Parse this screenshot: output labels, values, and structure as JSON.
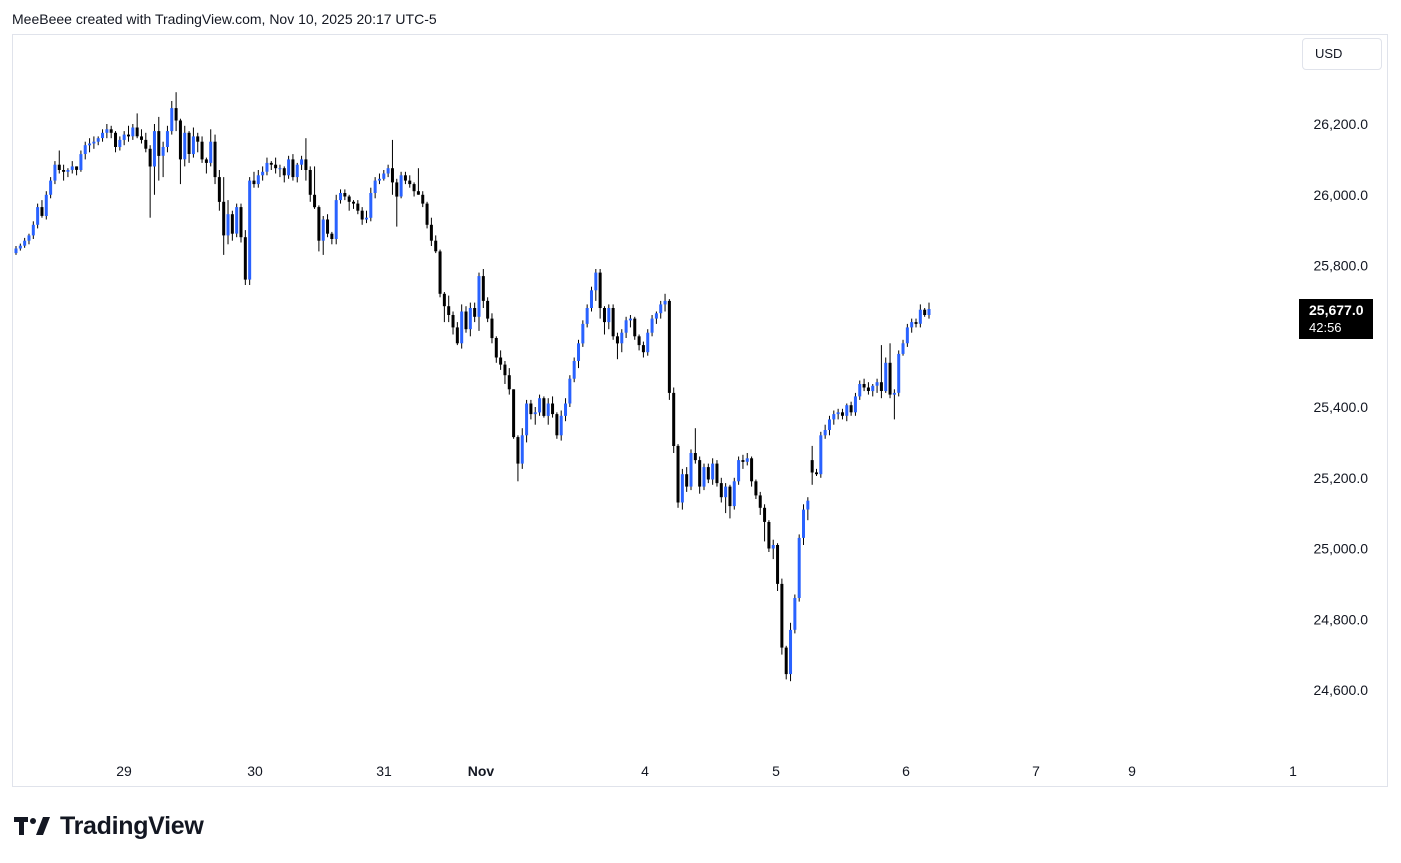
{
  "header": {
    "text": "MeeBeee created with TradingView.com, Nov 10, 2025 20:17 UTC-5"
  },
  "currency": "USD",
  "last_price": {
    "value": "25,677.0",
    "countdown": "42:56"
  },
  "branding": {
    "logo_text": "TradingView"
  },
  "colors": {
    "up": "#2962ff",
    "down": "#000000",
    "wick": "#000000"
  },
  "chart_data": {
    "type": "candlestick",
    "y_ticks": [
      "26,200.0",
      "26,000.0",
      "25,800.0",
      "25,400.0",
      "25,200.0",
      "25,000.0",
      "24,800.0",
      "24,600.0"
    ],
    "y_tick_values": [
      26200,
      26000,
      25800,
      25400,
      25200,
      25000,
      24800,
      24600
    ],
    "x_ticks": [
      "29",
      "30",
      "31",
      "Nov",
      "4",
      "5",
      "6",
      "7",
      "9",
      "1"
    ],
    "ylim": [
      24400,
      26450
    ],
    "grid": false,
    "candles_ohlc": [
      [
        25835,
        25855,
        25830,
        25848
      ],
      [
        25848,
        25862,
        25842,
        25856
      ],
      [
        25856,
        25878,
        25850,
        25870
      ],
      [
        25870,
        25890,
        25860,
        25885
      ],
      [
        25885,
        25925,
        25875,
        25915
      ],
      [
        25915,
        25975,
        25905,
        25965
      ],
      [
        25965,
        25985,
        25935,
        25940
      ],
      [
        25940,
        26010,
        25930,
        26000
      ],
      [
        26000,
        26050,
        25990,
        26040
      ],
      [
        26040,
        26095,
        26030,
        26085
      ],
      [
        26085,
        26125,
        26060,
        26070
      ],
      [
        26070,
        26085,
        26040,
        26065
      ],
      [
        26065,
        26075,
        26050,
        26070
      ],
      [
        26070,
        26095,
        26060,
        26080
      ],
      [
        26080,
        26080,
        26055,
        26070
      ],
      [
        26070,
        26125,
        26065,
        26115
      ],
      [
        26115,
        26150,
        26100,
        26140
      ],
      [
        26140,
        26160,
        26120,
        26145
      ],
      [
        26145,
        26165,
        26130,
        26150
      ],
      [
        26150,
        26165,
        26140,
        26160
      ],
      [
        26160,
        26185,
        26150,
        26175
      ],
      [
        26175,
        26200,
        26160,
        26185
      ],
      [
        26185,
        26195,
        26160,
        26175
      ],
      [
        26175,
        26180,
        26120,
        26135
      ],
      [
        26135,
        26165,
        26125,
        26155
      ],
      [
        26155,
        26180,
        26140,
        26170
      ],
      [
        26170,
        26195,
        26150,
        26165
      ],
      [
        26165,
        26200,
        26155,
        26190
      ],
      [
        26190,
        26230,
        26160,
        26165
      ],
      [
        26165,
        26185,
        26145,
        26155
      ],
      [
        26155,
        26175,
        26120,
        26130
      ],
      [
        26130,
        26140,
        25935,
        26080
      ],
      [
        26080,
        26200,
        26000,
        26180
      ],
      [
        26180,
        26220,
        26040,
        26110
      ],
      [
        26110,
        26150,
        26050,
        26135
      ],
      [
        26135,
        26195,
        26120,
        26180
      ],
      [
        26180,
        26265,
        26170,
        26245
      ],
      [
        26245,
        26290,
        26180,
        26210
      ],
      [
        26210,
        26215,
        26030,
        26100
      ],
      [
        26100,
        26195,
        26080,
        26175
      ],
      [
        26175,
        26180,
        26090,
        26115
      ],
      [
        26115,
        26190,
        26105,
        26165
      ],
      [
        26165,
        26175,
        26120,
        26150
      ],
      [
        26150,
        26165,
        26090,
        26100
      ],
      [
        26100,
        26105,
        26060,
        26090
      ],
      [
        26090,
        26185,
        26080,
        26150
      ],
      [
        26150,
        26170,
        26030,
        26050
      ],
      [
        26050,
        26070,
        25955,
        25980
      ],
      [
        25980,
        26050,
        25830,
        25885
      ],
      [
        25885,
        25985,
        25860,
        25945
      ],
      [
        25945,
        25955,
        25870,
        25890
      ],
      [
        25890,
        25975,
        25880,
        25965
      ],
      [
        25965,
        25975,
        25865,
        25880
      ],
      [
        25880,
        25900,
        25745,
        25760
      ],
      [
        25760,
        26050,
        25745,
        26040
      ],
      [
        26040,
        26065,
        26020,
        26030
      ],
      [
        26030,
        26070,
        26020,
        26055
      ],
      [
        26055,
        26080,
        26040,
        26065
      ],
      [
        26065,
        26105,
        26055,
        26090
      ],
      [
        26090,
        26095,
        26070,
        26085
      ],
      [
        26085,
        26105,
        26060,
        26075
      ],
      [
        26075,
        26085,
        26050,
        26075
      ],
      [
        26075,
        26080,
        26035,
        26055
      ],
      [
        26055,
        26110,
        26045,
        26100
      ],
      [
        26100,
        26115,
        26040,
        26050
      ],
      [
        26050,
        26090,
        26035,
        26085
      ],
      [
        26085,
        26110,
        26070,
        26100
      ],
      [
        26100,
        26160,
        26040,
        26070
      ],
      [
        26070,
        26080,
        25980,
        26000
      ],
      [
        26000,
        26080,
        25960,
        25965
      ],
      [
        25965,
        25970,
        25840,
        25870
      ],
      [
        25870,
        25940,
        25830,
        25930
      ],
      [
        25930,
        25945,
        25880,
        25890
      ],
      [
        25890,
        25895,
        25860,
        25875
      ],
      [
        25875,
        26000,
        25860,
        25985
      ],
      [
        25985,
        26015,
        25975,
        26005
      ],
      [
        26005,
        26015,
        25985,
        25995
      ],
      [
        25995,
        26000,
        25955,
        25980
      ],
      [
        25980,
        25985,
        25960,
        25975
      ],
      [
        25975,
        25985,
        25945,
        25955
      ],
      [
        25955,
        25965,
        25915,
        25930
      ],
      [
        25930,
        25955,
        25920,
        25935
      ],
      [
        25935,
        26020,
        25925,
        26005
      ],
      [
        26005,
        26050,
        25990,
        26040
      ],
      [
        26040,
        26060,
        26030,
        26045
      ],
      [
        26045,
        26070,
        26040,
        26060
      ],
      [
        26060,
        26085,
        26050,
        26075
      ],
      [
        26075,
        26155,
        26000,
        26035
      ],
      [
        26035,
        26045,
        25910,
        25995
      ],
      [
        25995,
        26065,
        25990,
        26055
      ],
      [
        26055,
        26065,
        26030,
        26040
      ],
      [
        26040,
        26055,
        26020,
        26030
      ],
      [
        26030,
        26035,
        25995,
        26010
      ],
      [
        26010,
        26075,
        26000,
        26000
      ],
      [
        26000,
        26010,
        25965,
        25975
      ],
      [
        25975,
        25980,
        25905,
        25915
      ],
      [
        25915,
        25935,
        25855,
        25870
      ],
      [
        25870,
        25885,
        25835,
        25840
      ],
      [
        25840,
        25845,
        25710,
        25720
      ],
      [
        25720,
        25725,
        25640,
        25685
      ],
      [
        25685,
        25715,
        25640,
        25660
      ],
      [
        25660,
        25670,
        25605,
        25625
      ],
      [
        25625,
        25640,
        25575,
        25580
      ],
      [
        25580,
        25690,
        25565,
        25670
      ],
      [
        25670,
        25685,
        25610,
        25620
      ],
      [
        25620,
        25695,
        25600,
        25680
      ],
      [
        25680,
        25695,
        25640,
        25655
      ],
      [
        25655,
        25780,
        25615,
        25770
      ],
      [
        25770,
        25790,
        25680,
        25700
      ],
      [
        25700,
        25710,
        25640,
        25650
      ],
      [
        25650,
        25665,
        25580,
        25595
      ],
      [
        25595,
        25600,
        25525,
        25540
      ],
      [
        25540,
        25560,
        25505,
        25520
      ],
      [
        25520,
        25530,
        25465,
        25490
      ],
      [
        25490,
        25510,
        25435,
        25450
      ],
      [
        25450,
        25450,
        25310,
        25315
      ],
      [
        25315,
        25320,
        25190,
        25240
      ],
      [
        25240,
        25340,
        25225,
        25320
      ],
      [
        25320,
        25420,
        25300,
        25410
      ],
      [
        25410,
        25420,
        25365,
        25380
      ],
      [
        25380,
        25400,
        25350,
        25385
      ],
      [
        25385,
        25435,
        25375,
        25425
      ],
      [
        25425,
        25430,
        25370,
        25375
      ],
      [
        25375,
        25425,
        25350,
        25410
      ],
      [
        25410,
        25430,
        25370,
        25380
      ],
      [
        25380,
        25385,
        25310,
        25320
      ],
      [
        25320,
        25390,
        25305,
        25375
      ],
      [
        25375,
        25425,
        25360,
        25410
      ],
      [
        25410,
        25490,
        25400,
        25480
      ],
      [
        25480,
        25540,
        25470,
        25530
      ],
      [
        25530,
        25590,
        25510,
        25580
      ],
      [
        25580,
        25645,
        25570,
        25635
      ],
      [
        25635,
        25690,
        25625,
        25680
      ],
      [
        25680,
        25740,
        25670,
        25730
      ],
      [
        25730,
        25790,
        25700,
        25780
      ],
      [
        25780,
        25790,
        25650,
        25680
      ],
      [
        25680,
        25685,
        25605,
        25640
      ],
      [
        25640,
        25690,
        25620,
        25680
      ],
      [
        25680,
        25690,
        25590,
        25600
      ],
      [
        25600,
        25610,
        25535,
        25580
      ],
      [
        25580,
        25620,
        25555,
        25610
      ],
      [
        25610,
        25655,
        25595,
        25645
      ],
      [
        25645,
        25660,
        25625,
        25650
      ],
      [
        25650,
        25655,
        25590,
        25600
      ],
      [
        25600,
        25605,
        25560,
        25575
      ],
      [
        25575,
        25585,
        25540,
        25555
      ],
      [
        25555,
        25620,
        25545,
        25610
      ],
      [
        25610,
        25660,
        25600,
        25650
      ],
      [
        25650,
        25670,
        25635,
        25665
      ],
      [
        25665,
        25700,
        25650,
        25690
      ],
      [
        25690,
        25720,
        25670,
        25700
      ],
      [
        25700,
        25705,
        25420,
        25440
      ],
      [
        25440,
        25455,
        25270,
        25290
      ],
      [
        25290,
        25295,
        25115,
        25130
      ],
      [
        25130,
        25225,
        25110,
        25210
      ],
      [
        25210,
        25230,
        25160,
        25175
      ],
      [
        25175,
        25280,
        25165,
        25270
      ],
      [
        25270,
        25340,
        25240,
        25250
      ],
      [
        25250,
        25260,
        25155,
        25175
      ],
      [
        25175,
        25240,
        25165,
        25230
      ],
      [
        25230,
        25240,
        25185,
        25195
      ],
      [
        25195,
        25255,
        25180,
        25240
      ],
      [
        25240,
        25250,
        25175,
        25185
      ],
      [
        25185,
        25200,
        25130,
        25145
      ],
      [
        25145,
        25185,
        25100,
        25175
      ],
      [
        25175,
        25180,
        25085,
        25120
      ],
      [
        25120,
        25200,
        25110,
        25190
      ],
      [
        25190,
        25260,
        25180,
        25250
      ],
      [
        25250,
        25265,
        25225,
        25245
      ],
      [
        25245,
        25270,
        25235,
        25255
      ],
      [
        25255,
        25260,
        25175,
        25190
      ],
      [
        25190,
        25195,
        25140,
        25150
      ],
      [
        25150,
        25160,
        25095,
        25115
      ],
      [
        25115,
        25125,
        25020,
        25075
      ],
      [
        25075,
        25080,
        24990,
        25000
      ],
      [
        25000,
        25025,
        24970,
        25010
      ],
      [
        25010,
        25015,
        24880,
        24900
      ],
      [
        24900,
        24915,
        24700,
        24720
      ],
      [
        24720,
        24725,
        24630,
        24645
      ],
      [
        24645,
        24790,
        24625,
        24770
      ],
      [
        24770,
        24870,
        24760,
        24860
      ],
      [
        24860,
        25040,
        24850,
        25030
      ],
      [
        25030,
        25125,
        25010,
        25110
      ],
      [
        25110,
        25145,
        25080,
        25135
      ],
      [
        25250,
        25290,
        25180,
        25215
      ],
      [
        25215,
        25225,
        25205,
        25210
      ],
      [
        25210,
        25330,
        25200,
        25320
      ],
      [
        25320,
        25350,
        25310,
        25335
      ],
      [
        25335,
        25375,
        25320,
        25365
      ],
      [
        25365,
        25390,
        25350,
        25380
      ],
      [
        25380,
        25395,
        25365,
        25385
      ],
      [
        25385,
        25395,
        25365,
        25375
      ],
      [
        25375,
        25410,
        25360,
        25405
      ],
      [
        25405,
        25415,
        25375,
        25385
      ],
      [
        25385,
        25440,
        25375,
        25430
      ],
      [
        25430,
        25475,
        25420,
        25465
      ],
      [
        25465,
        25480,
        25445,
        25455
      ],
      [
        25455,
        25470,
        25435,
        25445
      ],
      [
        25445,
        25465,
        25430,
        25460
      ],
      [
        25460,
        25480,
        25440,
        25470
      ],
      [
        25470,
        25575,
        25425,
        25445
      ],
      [
        25445,
        25540,
        25440,
        25525
      ],
      [
        25525,
        25580,
        25425,
        25435
      ],
      [
        25435,
        25450,
        25365,
        25440
      ],
      [
        25440,
        25560,
        25430,
        25550
      ],
      [
        25550,
        25590,
        25545,
        25580
      ],
      [
        25580,
        25635,
        25570,
        25625
      ],
      [
        25625,
        25650,
        25610,
        25640
      ],
      [
        25640,
        25650,
        25625,
        25635
      ],
      [
        25635,
        25690,
        25625,
        25675
      ],
      [
        25675,
        25680,
        25655,
        25660
      ],
      [
        25660,
        25695,
        25650,
        25677
      ]
    ]
  }
}
